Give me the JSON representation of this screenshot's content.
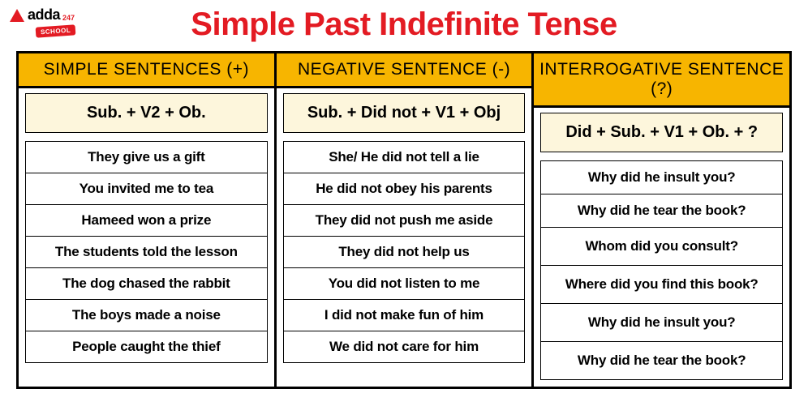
{
  "brand": {
    "name": "adda",
    "suffix": "247",
    "badge": "SCHOOL"
  },
  "title": "Simple Past Indefinite Tense",
  "colors": {
    "title": "#e31b23",
    "header_bg": "#f7b500",
    "formula_bg": "#fdf6dc",
    "border": "#000000",
    "text": "#000000",
    "page_bg": "#ffffff"
  },
  "columns": [
    {
      "header": "SIMPLE SENTENCES (+)",
      "formula": "Sub. + V2 + Ob.",
      "examples": [
        "They give us a gift",
        "You invited me to tea",
        "Hameed won a prize",
        "The students told the lesson",
        "The dog chased the rabbit",
        "The boys made a noise",
        "People caught the thief"
      ]
    },
    {
      "header": "NEGATIVE SENTENCE (-)",
      "formula": "Sub. + Did not + V1 + Obj",
      "examples": [
        "She/ He did not tell a lie",
        "He did not obey his parents",
        "They did not push me aside",
        "They did not help us",
        "You did not listen to me",
        "I did not make fun of him",
        "We did not care for him"
      ]
    },
    {
      "header": "INTERROGATIVE SENTENCE (?)",
      "formula": "Did + Sub. + V1 + Ob. + ?",
      "examples": [
        "Why did he insult you?",
        "Why did he tear the book?",
        "Whom did you consult?",
        "Where did you find this book?",
        "Why did he insult you?",
        "Why did he tear the book?"
      ]
    }
  ]
}
